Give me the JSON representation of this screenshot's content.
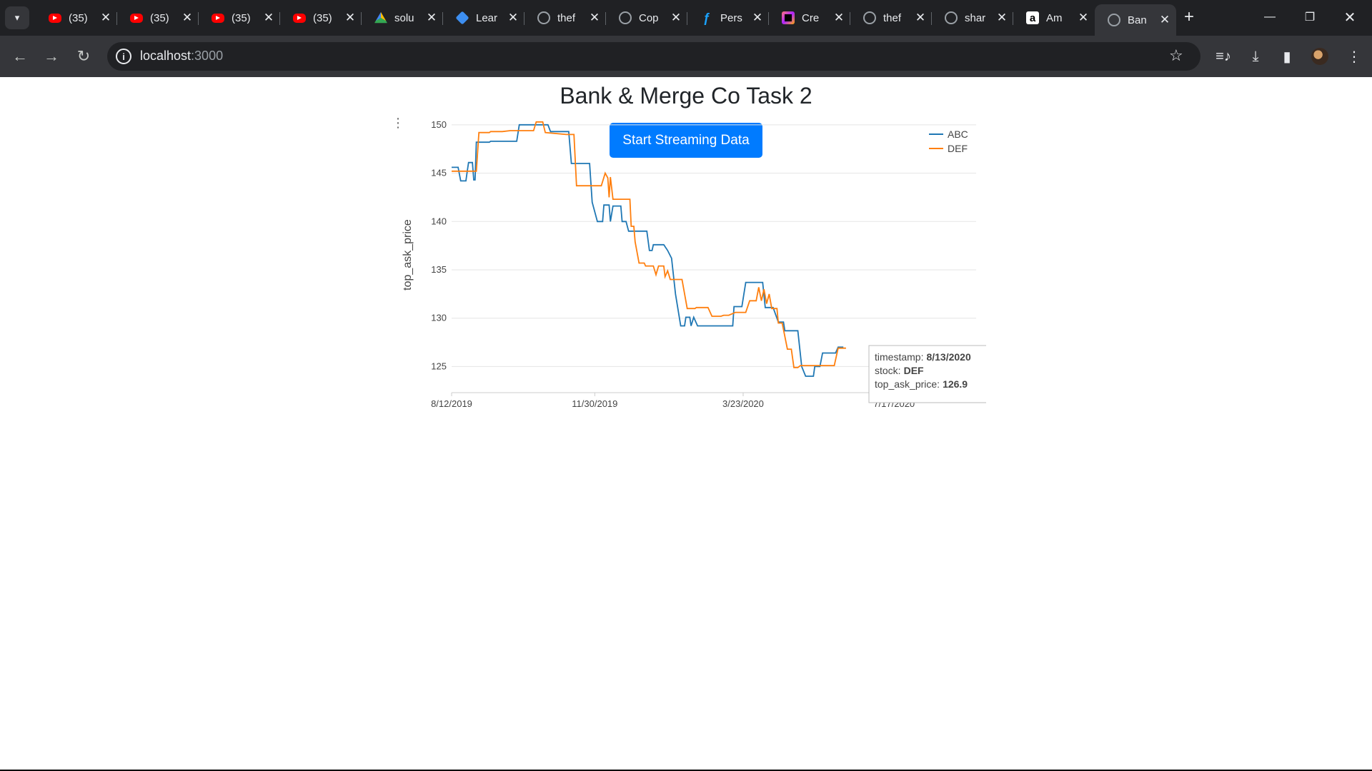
{
  "browser": {
    "tabs": [
      {
        "icon": "youtube-icon",
        "title": "(35)",
        "fav": "yt"
      },
      {
        "icon": "youtube-icon",
        "title": "(35)",
        "fav": "yt"
      },
      {
        "icon": "youtube-icon",
        "title": "(35)",
        "fav": "yt"
      },
      {
        "icon": "youtube-icon",
        "title": "(35)",
        "fav": "yt"
      },
      {
        "icon": "google-drive-icon",
        "title": "solu",
        "fav": "drive"
      },
      {
        "icon": "leetcode-icon",
        "title": "Lear",
        "fav": "lc"
      },
      {
        "icon": "github-icon",
        "title": "thef",
        "fav": "gh"
      },
      {
        "icon": "globe-icon",
        "title": "Cop",
        "fav": "globe"
      },
      {
        "icon": "figma-icon",
        "title": "Pers",
        "fav": "fig"
      },
      {
        "icon": "jetbrains-icon",
        "title": "Cre",
        "fav": "jb"
      },
      {
        "icon": "github-icon",
        "title": "thef",
        "fav": "gh"
      },
      {
        "icon": "github-icon",
        "title": "shar",
        "fav": "gh"
      },
      {
        "icon": "amazon-icon",
        "title": "Am",
        "fav": "amz"
      },
      {
        "icon": "globe-icon",
        "title": "Ban",
        "fav": "globe",
        "active": true
      }
    ],
    "address": {
      "host": "localhost",
      "port": ":3000"
    }
  },
  "page": {
    "title": "Bank & Merge Co Task 2",
    "stream_button": "Start Streaming Data"
  },
  "chart_data": {
    "type": "line",
    "ylabel": "top_ask_price",
    "xlabel": "",
    "x_ticks": [
      "8/12/2019",
      "11/30/2019",
      "3/23/2020",
      "7/17/2020"
    ],
    "y_ticks": [
      125,
      130,
      135,
      140,
      145,
      150
    ],
    "xlim": [
      "2019-08-12",
      "2020-09-18"
    ],
    "ylim": [
      122.3,
      150.8
    ],
    "grid": true,
    "legend_position": "top-right",
    "series": [
      {
        "name": "ABC",
        "color": "#1f77b4",
        "points": [
          [
            "2019-08-12",
            145.6
          ],
          [
            "2019-08-17",
            145.6
          ],
          [
            "2019-08-19",
            144.2
          ],
          [
            "2019-08-23",
            144.2
          ],
          [
            "2019-08-24",
            145.2
          ],
          [
            "2019-08-25",
            146.1
          ],
          [
            "2019-08-28",
            146.1
          ],
          [
            "2019-08-29",
            144.3
          ],
          [
            "2019-08-30",
            144.3
          ],
          [
            "2019-08-31",
            148.2
          ],
          [
            "2019-09-10",
            148.2
          ],
          [
            "2019-09-11",
            148.3
          ],
          [
            "2019-10-01",
            148.3
          ],
          [
            "2019-10-03",
            150.0
          ],
          [
            "2019-10-25",
            150.0
          ],
          [
            "2019-10-27",
            149.3
          ],
          [
            "2019-11-10",
            149.3
          ],
          [
            "2019-11-12",
            146.0
          ],
          [
            "2019-11-26",
            146.0
          ],
          [
            "2019-11-28",
            142.0
          ],
          [
            "2019-12-02",
            140.0
          ],
          [
            "2019-12-06",
            140.0
          ],
          [
            "2019-12-07",
            141.7
          ],
          [
            "2019-12-11",
            141.7
          ],
          [
            "2019-12-12",
            140.0
          ],
          [
            "2019-12-14",
            141.6
          ],
          [
            "2019-12-20",
            141.6
          ],
          [
            "2019-12-21",
            140.0
          ],
          [
            "2019-12-24",
            140.0
          ],
          [
            "2019-12-26",
            139.0
          ],
          [
            "2020-01-09",
            139.0
          ],
          [
            "2020-01-11",
            137.0
          ],
          [
            "2020-01-13",
            137.0
          ],
          [
            "2020-01-14",
            137.6
          ],
          [
            "2020-01-22",
            137.6
          ],
          [
            "2020-01-25",
            137.0
          ],
          [
            "2020-01-28",
            136.2
          ],
          [
            "2020-01-31",
            132.5
          ],
          [
            "2020-02-04",
            129.2
          ],
          [
            "2020-02-07",
            129.2
          ],
          [
            "2020-02-08",
            130.1
          ],
          [
            "2020-02-11",
            130.1
          ],
          [
            "2020-02-12",
            129.2
          ],
          [
            "2020-02-14",
            130.1
          ],
          [
            "2020-02-17",
            129.2
          ],
          [
            "2020-03-06",
            129.2
          ],
          [
            "2020-03-15",
            129.2
          ],
          [
            "2020-03-16",
            131.2
          ],
          [
            "2020-03-22",
            131.2
          ],
          [
            "2020-03-25",
            133.7
          ],
          [
            "2020-04-07",
            133.7
          ],
          [
            "2020-04-09",
            131.1
          ],
          [
            "2020-04-15",
            131.1
          ],
          [
            "2020-04-19",
            129.6
          ],
          [
            "2020-04-23",
            129.6
          ],
          [
            "2020-04-24",
            128.7
          ],
          [
            "2020-05-04",
            128.7
          ],
          [
            "2020-05-07",
            125.0
          ],
          [
            "2020-05-10",
            124.0
          ],
          [
            "2020-05-16",
            124.0
          ],
          [
            "2020-05-17",
            125.0
          ],
          [
            "2020-05-21",
            125.0
          ],
          [
            "2020-05-23",
            126.4
          ],
          [
            "2020-06-02",
            126.4
          ],
          [
            "2020-06-04",
            127.0
          ],
          [
            "2020-06-08",
            127.0
          ]
        ]
      },
      {
        "name": "DEF",
        "color": "#ff7f0e",
        "points": [
          [
            "2019-08-12",
            145.2
          ],
          [
            "2019-08-31",
            145.2
          ],
          [
            "2019-09-02",
            149.2
          ],
          [
            "2019-09-10",
            149.2
          ],
          [
            "2019-09-11",
            149.3
          ],
          [
            "2019-09-20",
            149.3
          ],
          [
            "2019-09-26",
            149.4
          ],
          [
            "2019-10-14",
            149.4
          ],
          [
            "2019-10-16",
            150.3
          ],
          [
            "2019-10-21",
            150.3
          ],
          [
            "2019-10-23",
            149.2
          ],
          [
            "2019-11-08",
            149.0
          ],
          [
            "2019-11-14",
            149.0
          ],
          [
            "2019-11-16",
            143.7
          ],
          [
            "2019-12-05",
            143.7
          ],
          [
            "2019-12-08",
            145.0
          ],
          [
            "2019-12-10",
            144.5
          ],
          [
            "2019-12-11",
            142.5
          ],
          [
            "2019-12-12",
            144.6
          ],
          [
            "2019-12-14",
            142.3
          ],
          [
            "2019-12-27",
            142.3
          ],
          [
            "2019-12-28",
            139.5
          ],
          [
            "2019-12-30",
            139.5
          ],
          [
            "2019-12-31",
            137.9
          ],
          [
            "2020-01-03",
            135.7
          ],
          [
            "2020-01-07",
            135.7
          ],
          [
            "2020-01-08",
            135.4
          ],
          [
            "2020-01-14",
            135.4
          ],
          [
            "2020-01-16",
            134.5
          ],
          [
            "2020-01-18",
            135.4
          ],
          [
            "2020-01-22",
            135.4
          ],
          [
            "2020-01-23",
            134.3
          ],
          [
            "2020-01-25",
            134.9
          ],
          [
            "2020-01-27",
            134.0
          ],
          [
            "2020-02-05",
            134.0
          ],
          [
            "2020-02-09",
            131.0
          ],
          [
            "2020-02-15",
            131.0
          ],
          [
            "2020-02-16",
            131.1
          ],
          [
            "2020-02-25",
            131.1
          ],
          [
            "2020-02-28",
            130.2
          ],
          [
            "2020-03-06",
            130.2
          ],
          [
            "2020-03-08",
            130.3
          ],
          [
            "2020-03-12",
            130.3
          ],
          [
            "2020-03-17",
            130.6
          ],
          [
            "2020-03-25",
            130.6
          ],
          [
            "2020-03-28",
            131.8
          ],
          [
            "2020-04-02",
            131.8
          ],
          [
            "2020-04-04",
            133.2
          ],
          [
            "2020-04-06",
            131.8
          ],
          [
            "2020-04-08",
            133.0
          ],
          [
            "2020-04-10",
            131.5
          ],
          [
            "2020-04-12",
            132.5
          ],
          [
            "2020-04-14",
            131.0
          ],
          [
            "2020-04-18",
            131.0
          ],
          [
            "2020-04-19",
            129.5
          ],
          [
            "2020-04-22",
            129.5
          ],
          [
            "2020-04-26",
            126.8
          ],
          [
            "2020-04-29",
            126.8
          ],
          [
            "2020-05-01",
            124.9
          ],
          [
            "2020-05-04",
            124.9
          ],
          [
            "2020-05-06",
            125.1
          ],
          [
            "2020-05-14",
            125.1
          ],
          [
            "2020-05-23",
            125.1
          ],
          [
            "2020-06-01",
            125.1
          ],
          [
            "2020-06-04",
            126.9
          ],
          [
            "2020-06-10",
            126.9
          ]
        ]
      }
    ],
    "tooltip": {
      "timestamp_label": "timestamp:",
      "timestamp_value": "8/13/2020",
      "stock_label": "stock:",
      "stock_value": "DEF",
      "price_label": "top_ask_price:",
      "price_value": "126.9"
    }
  }
}
